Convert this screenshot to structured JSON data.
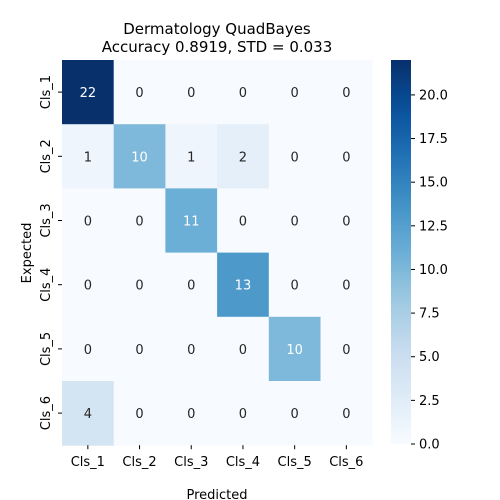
{
  "chart_data": {
    "type": "heatmap",
    "title": "Dermatology QuadBayes",
    "subtitle": "Accuracy 0.8919, STD = 0.033",
    "xlabel": "Predicted",
    "ylabel": "Expected",
    "x_categories": [
      "Cls_1",
      "Cls_2",
      "Cls_3",
      "Cls_4",
      "Cls_5",
      "Cls_6"
    ],
    "y_categories": [
      "Cls_1",
      "Cls_2",
      "Cls_3",
      "Cls_4",
      "Cls_5",
      "Cls_6"
    ],
    "values": [
      [
        22,
        0,
        0,
        0,
        0,
        0
      ],
      [
        1,
        10,
        1,
        2,
        0,
        0
      ],
      [
        0,
        0,
        11,
        0,
        0,
        0
      ],
      [
        0,
        0,
        0,
        13,
        0,
        0
      ],
      [
        0,
        0,
        0,
        0,
        10,
        0
      ],
      [
        4,
        0,
        0,
        0,
        0,
        0
      ]
    ],
    "colorbar": {
      "min": 0,
      "max": 22,
      "ticks": [
        "0.0",
        "2.5",
        "5.0",
        "7.5",
        "10.0",
        "12.5",
        "15.0",
        "17.5",
        "20.0"
      ],
      "colormap": "Blues",
      "low_color": "#f7fbff",
      "high_color": "#08306b"
    }
  }
}
